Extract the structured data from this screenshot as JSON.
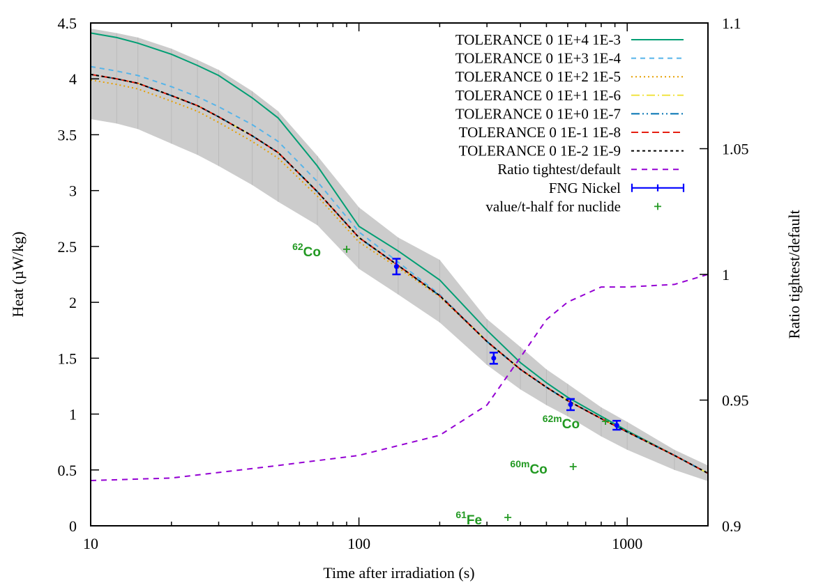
{
  "chart_data": {
    "type": "line",
    "xlabel": "Time after irradiation (s)",
    "ylabel": "Heat (µW/kg)",
    "y2label": "Ratio tightest/default",
    "xscale": "log",
    "xlim": [
      10,
      2000
    ],
    "ylim": [
      0,
      4.5
    ],
    "y2lim": [
      0.9,
      1.1
    ],
    "grid": false,
    "legend_position": "top-right",
    "x_ticks": [
      "10",
      "100",
      "1000"
    ],
    "y_ticks": [
      "0",
      "0.5",
      "1",
      "1.5",
      "2",
      "2.5",
      "3",
      "3.5",
      "4",
      "4.5"
    ],
    "y2_ticks": [
      "0.9",
      "0.95",
      "1",
      "1.05",
      "1.1"
    ],
    "x": [
      10,
      12.5,
      15,
      20,
      25,
      30,
      40,
      50,
      70,
      100,
      140,
      200,
      300,
      400,
      500,
      600,
      800,
      1000,
      1500,
      2000
    ],
    "band": {
      "color": "#cccccc",
      "upper": [
        4.45,
        4.41,
        4.37,
        4.27,
        4.17,
        4.08,
        3.89,
        3.71,
        3.31,
        2.85,
        2.58,
        2.38,
        1.85,
        1.6,
        1.4,
        1.27,
        1.06,
        0.93,
        0.68,
        0.54
      ],
      "lower": [
        3.64,
        3.6,
        3.55,
        3.42,
        3.32,
        3.22,
        3.05,
        2.9,
        2.69,
        2.3,
        2.07,
        1.82,
        1.44,
        1.22,
        1.08,
        0.98,
        0.8,
        0.68,
        0.5,
        0.4
      ]
    },
    "series": [
      {
        "name": "TOLERANCE 0 1E+4 1E-3",
        "color": "#009e73",
        "dash": "",
        "values": [
          4.41,
          4.37,
          4.32,
          4.22,
          4.12,
          4.03,
          3.83,
          3.65,
          3.22,
          2.68,
          2.46,
          2.2,
          1.75,
          1.46,
          1.28,
          1.15,
          0.98,
          0.85,
          0.63,
          0.47
        ]
      },
      {
        "name": "TOLERANCE 0 1E+3 1E-4",
        "color": "#56b4e9",
        "dash": "7,6",
        "values": [
          4.11,
          4.07,
          4.03,
          3.93,
          3.84,
          3.75,
          3.59,
          3.44,
          3.08,
          2.63,
          2.36,
          2.07,
          1.65,
          1.4,
          1.24,
          1.12,
          0.96,
          0.84,
          0.63,
          0.47
        ]
      },
      {
        "name": "TOLERANCE 0 1E+2 1E-5",
        "color": "#e69f00",
        "dash": "2,4",
        "values": [
          3.99,
          3.95,
          3.91,
          3.8,
          3.71,
          3.61,
          3.44,
          3.29,
          2.95,
          2.54,
          2.31,
          2.05,
          1.65,
          1.4,
          1.24,
          1.12,
          0.96,
          0.84,
          0.63,
          0.47
        ]
      },
      {
        "name": "TOLERANCE 0 1E+1 1E-6",
        "color": "#f0e442",
        "dash": "12,4,2,4",
        "values": [
          4.04,
          4.0,
          3.96,
          3.85,
          3.76,
          3.66,
          3.49,
          3.34,
          2.99,
          2.58,
          2.33,
          2.06,
          1.65,
          1.4,
          1.24,
          1.12,
          0.96,
          0.84,
          0.63,
          0.47
        ]
      },
      {
        "name": "TOLERANCE 0 1E+0 1E-7",
        "color": "#0072b2",
        "dash": "12,4,2,4,2,4",
        "values": [
          4.04,
          4.0,
          3.96,
          3.85,
          3.76,
          3.66,
          3.49,
          3.34,
          2.99,
          2.58,
          2.33,
          2.06,
          1.65,
          1.4,
          1.24,
          1.12,
          0.96,
          0.84,
          0.63,
          0.47
        ]
      },
      {
        "name": "TOLERANCE 0 1E-1 1E-8",
        "color": "#e51e10",
        "dash": "10,5",
        "values": [
          4.04,
          4.0,
          3.96,
          3.85,
          3.76,
          3.66,
          3.49,
          3.34,
          2.99,
          2.58,
          2.33,
          2.06,
          1.65,
          1.4,
          1.24,
          1.12,
          0.96,
          0.84,
          0.63,
          0.47
        ]
      },
      {
        "name": "TOLERANCE 0 1E-2 1E-9",
        "color": "#000000",
        "dash": "4,4",
        "values": [
          4.04,
          4.0,
          3.96,
          3.85,
          3.76,
          3.66,
          3.49,
          3.34,
          2.99,
          2.58,
          2.33,
          2.06,
          1.65,
          1.4,
          1.24,
          1.12,
          0.96,
          0.84,
          0.63,
          0.47
        ]
      }
    ],
    "ratio": {
      "name": "Ratio tightest/default",
      "color": "#9400d3",
      "dash": "8,7",
      "axis": "right",
      "x": [
        10,
        20,
        50,
        100,
        200,
        300,
        400,
        500,
        600,
        800,
        1000,
        1500,
        2000
      ],
      "values": [
        0.918,
        0.919,
        0.924,
        0.928,
        0.936,
        0.948,
        0.967,
        0.982,
        0.989,
        0.995,
        0.995,
        0.996,
        1.0
      ]
    },
    "measurements": {
      "name": "FNG Nickel",
      "color": "#0000ff",
      "x": [
        138,
        318,
        615,
        914
      ],
      "values": [
        2.32,
        1.5,
        1.085,
        0.9
      ],
      "errors": [
        0.07,
        0.05,
        0.05,
        0.04
      ]
    },
    "nuclides": {
      "name": "value/t-half for nuclide",
      "color": "#229922",
      "points": [
        {
          "mass": "62",
          "symbol": "Co",
          "x": 90,
          "value": 2.475
        },
        {
          "mass": "62m",
          "symbol": "Co",
          "x": 830,
          "value": 0.935
        },
        {
          "mass": "60m",
          "symbol": "Co",
          "x": 629,
          "value": 0.53
        },
        {
          "mass": "61",
          "symbol": "Fe",
          "x": 359,
          "value": 0.075
        }
      ]
    }
  }
}
